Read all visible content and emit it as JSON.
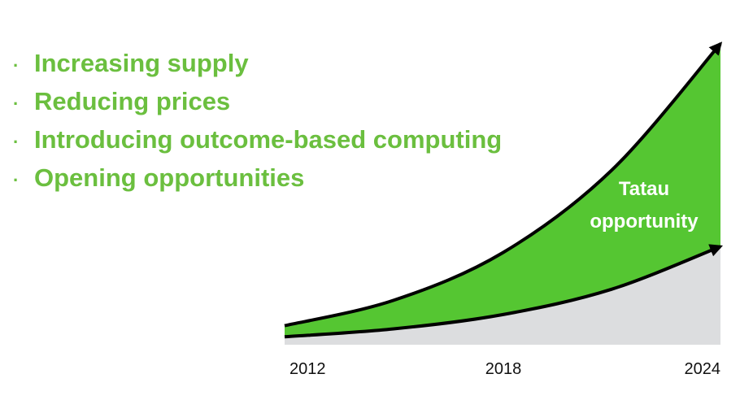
{
  "bullets": [
    {
      "text": "Increasing supply"
    },
    {
      "text": "Reducing prices"
    },
    {
      "text": "Introducing outcome-based computing"
    },
    {
      "text": "Opening opportunities"
    }
  ],
  "bullet_glyph": "·",
  "colors": {
    "accent_green": "#6bbf3f",
    "upper_fill": "#55c632",
    "lower_fill": "#dcdddf",
    "curve": "#000000",
    "annotation_text": "#ffffff"
  },
  "chart_data": {
    "type": "area",
    "x": [
      2012,
      2015,
      2018,
      2021,
      2024
    ],
    "series": [
      {
        "values": [
          12,
          28,
          58,
          110,
          190
        ]
      },
      {
        "values": [
          5,
          10,
          19,
          35,
          62
        ]
      }
    ],
    "annotations": [
      "Tatau",
      "opportunity"
    ],
    "xlim": [
      2012,
      2024
    ],
    "ylim": [
      0,
      195
    ],
    "tick_labels": [
      "2012",
      "2018",
      "2024"
    ],
    "grid": false,
    "legend": "none"
  }
}
